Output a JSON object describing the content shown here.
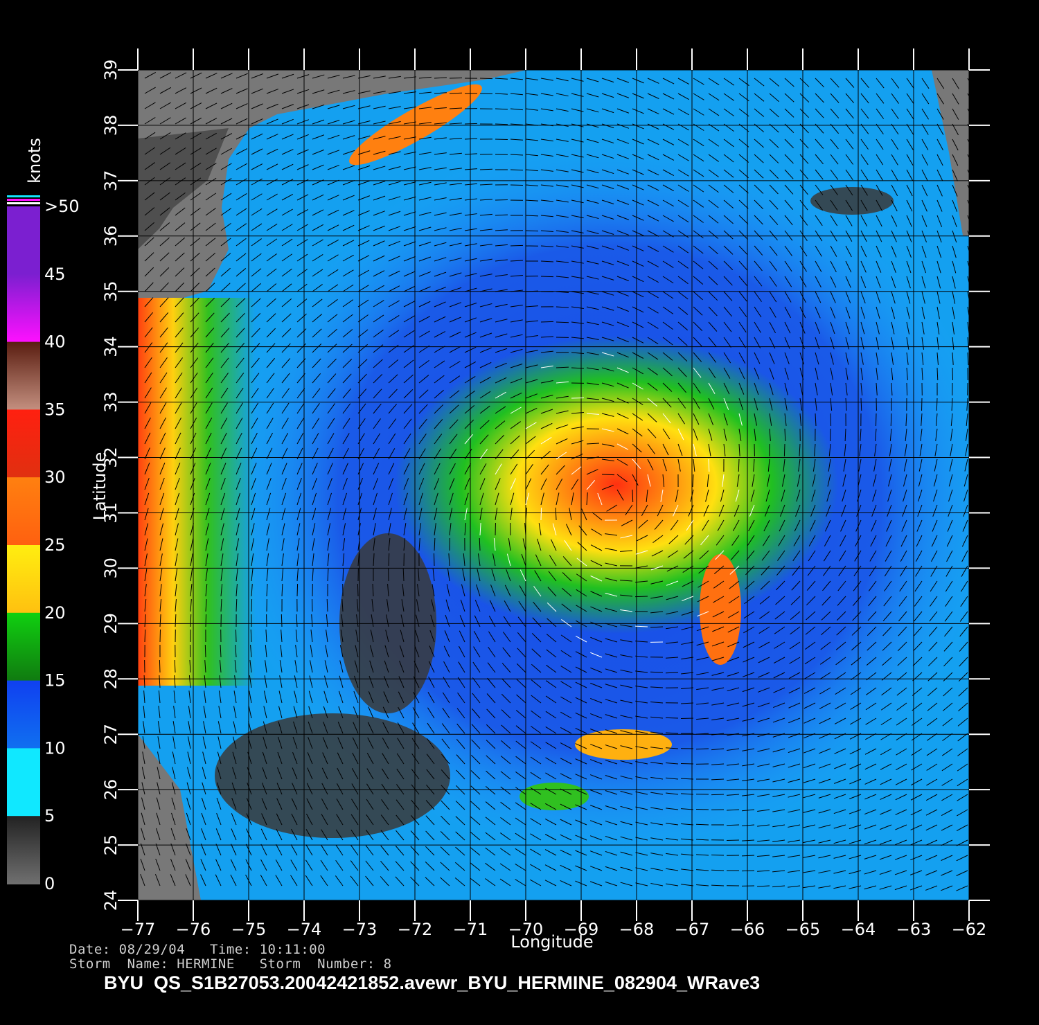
{
  "colorbar": {
    "title": "knots",
    "labels": [
      ">50",
      "45",
      "40",
      "35",
      "30",
      "25",
      "20",
      "15",
      "10",
      "5",
      "0"
    ],
    "colors": {
      "purple": "#7b1fd0",
      "magenta": "#ff10ff",
      "brown": "#5a1d10",
      "red": "#ff2010",
      "orange": "#ff8010",
      "yellow": "#ffee10",
      "green": "#10d010",
      "blue": "#1040f0",
      "cyan": "#10e8ff",
      "gray": "#707070"
    }
  },
  "map": {
    "land_color": "#7a7a7a",
    "land_dark_color": "#555555",
    "ocean_calm_color": "#1060e0",
    "grid_color": "#000000",
    "wind_barb_color": "#000000",
    "rain_flag_color": "#ffffff"
  },
  "axes": {
    "xlabel": "Longitude",
    "ylabel": "Latitude",
    "x_ticks": [
      "-77",
      "-76",
      "-75",
      "-74",
      "-73",
      "-72",
      "-71",
      "-70",
      "-69",
      "-68",
      "-67",
      "-66",
      "-65",
      "-64",
      "-63",
      "-62"
    ],
    "y_ticks": [
      "24",
      "25",
      "26",
      "27",
      "28",
      "29",
      "30",
      "31",
      "32",
      "33",
      "34",
      "35",
      "36",
      "37",
      "38",
      "39"
    ],
    "xlim": [
      -77,
      -62
    ],
    "ylim": [
      24,
      39
    ]
  },
  "info": {
    "line1": "Date: 08/29/04   Time: 10:11:00",
    "line2": "Storm  Name: HERMINE   Storm  Number: 8"
  },
  "footer": "BYU  QS_S1B27053.20042421852.avewr_BYU_HERMINE_082904_WRave3"
}
